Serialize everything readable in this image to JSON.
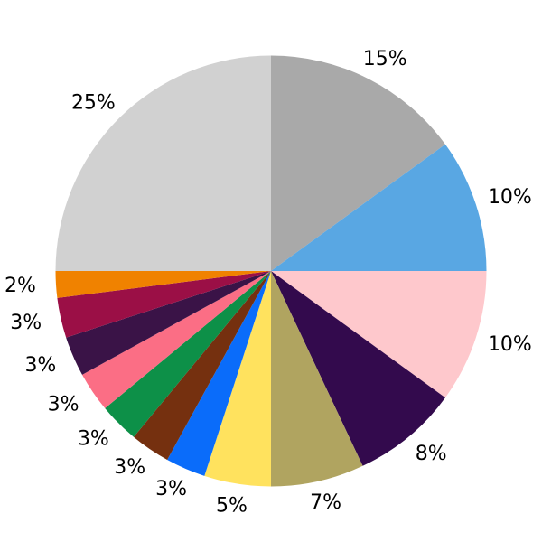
{
  "chart_data": {
    "type": "pie",
    "title": "",
    "background": "#ffffff",
    "legend": "none",
    "start_angle_deg_from_top": 0,
    "direction": "clockwise",
    "label_position": "outside",
    "label_color": "#000000",
    "values": [
      15,
      10,
      10,
      8,
      7,
      5,
      3,
      3,
      3,
      3,
      3,
      3,
      2,
      25
    ],
    "labels": [
      "15%",
      "10%",
      "10%",
      "8%",
      "7%",
      "5%",
      "3%",
      "3%",
      "3%",
      "3%",
      "3%",
      "3%",
      "2%",
      "25%"
    ],
    "colors": [
      "#a9a9a9",
      "#59a7e3",
      "#fec8cc",
      "#330a4d",
      "#b0a460",
      "#ffe25e",
      "#0a6cfa",
      "#75300f",
      "#0d9048",
      "#fb6e85",
      "#3a1347",
      "#9b0f46",
      "#f08200",
      "#d1d1d1"
    ],
    "color_names": [
      "gray",
      "sky-blue",
      "pink",
      "deep-purple",
      "dark-khaki",
      "yellow",
      "bright-blue",
      "brown",
      "green",
      "rose",
      "dark-plum",
      "maroon",
      "orange",
      "light-gray"
    ]
  }
}
